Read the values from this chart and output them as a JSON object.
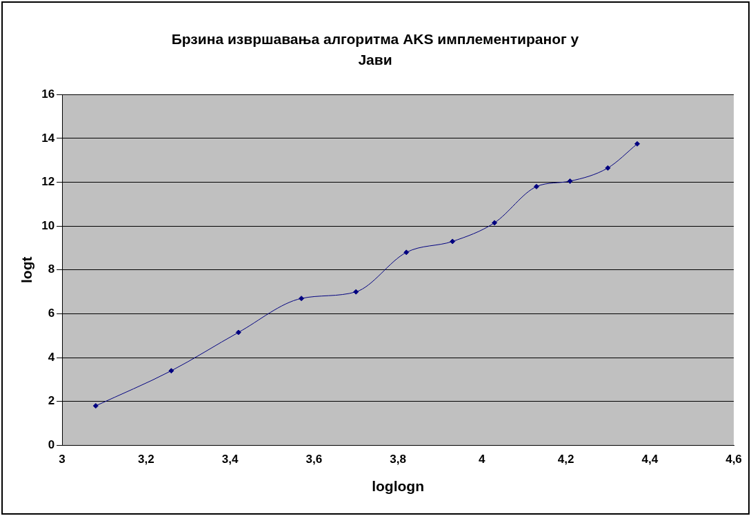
{
  "chart_data": {
    "type": "line",
    "title": "Брзина извршавања алгоритма AKS имплементираног у Јави",
    "xlabel": "loglogn",
    "ylabel": "logt",
    "x": [
      3.08,
      3.26,
      3.42,
      3.57,
      3.7,
      3.82,
      3.93,
      4.03,
      4.13,
      4.21,
      4.3,
      4.37
    ],
    "series": [
      {
        "color": "#000080",
        "values": [
          1.8,
          3.4,
          5.15,
          6.7,
          7.0,
          8.8,
          9.3,
          10.15,
          11.8,
          12.05,
          12.65,
          13.75
        ]
      }
    ],
    "xlim": [
      3,
      4.6
    ],
    "xticks": [
      3,
      {
        "value": 3.2,
        "label": "3,2"
      },
      {
        "value": 3.4,
        "label": "3,4"
      },
      {
        "value": 3.6,
        "label": "3,6"
      },
      {
        "value": 3.8,
        "label": "3,8"
      },
      4,
      {
        "value": 4.2,
        "label": "4,2"
      },
      {
        "value": 4.4,
        "label": "4,4"
      },
      {
        "value": 4.6,
        "label": "4,6"
      }
    ],
    "ylim": [
      0,
      16
    ],
    "yticks": [
      0,
      2,
      4,
      6,
      8,
      10,
      12,
      14,
      16
    ],
    "grid": "y",
    "legend": false,
    "marker": "diamond",
    "line_style": "solid"
  }
}
